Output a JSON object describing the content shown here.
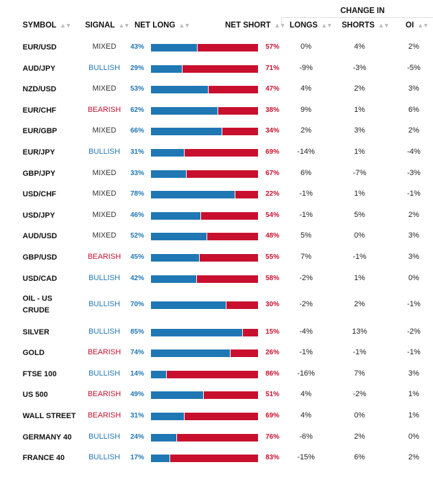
{
  "header": {
    "change_in": "CHANGE IN",
    "symbol": "SYMBOL",
    "signal": "SIGNAL",
    "net_long": "NET LONG",
    "net_short": "NET SHORT",
    "longs": "LONGS",
    "shorts": "SHORTS",
    "oi": "OI",
    "sort_icon": "sort-icon"
  },
  "colors": {
    "long": "#1f77b4",
    "short": "#c8102e"
  },
  "rows": [
    {
      "symbol": "EUR/USD",
      "signal": "MIXED",
      "net_long": "43%",
      "net_short": "57%",
      "long_fraction": 0.43,
      "longs": "0%",
      "shorts": "4%",
      "oi": "2%"
    },
    {
      "symbol": "AUD/JPY",
      "signal": "BULLISH",
      "net_long": "29%",
      "net_short": "71%",
      "long_fraction": 0.29,
      "longs": "-9%",
      "shorts": "-3%",
      "oi": "-5%"
    },
    {
      "symbol": "NZD/USD",
      "signal": "MIXED",
      "net_long": "53%",
      "net_short": "47%",
      "long_fraction": 0.53,
      "longs": "4%",
      "shorts": "2%",
      "oi": "3%"
    },
    {
      "symbol": "EUR/CHF",
      "signal": "BEARISH",
      "net_long": "62%",
      "net_short": "38%",
      "long_fraction": 0.62,
      "longs": "9%",
      "shorts": "1%",
      "oi": "6%"
    },
    {
      "symbol": "EUR/GBP",
      "signal": "MIXED",
      "net_long": "66%",
      "net_short": "34%",
      "long_fraction": 0.66,
      "longs": "2%",
      "shorts": "3%",
      "oi": "2%"
    },
    {
      "symbol": "EUR/JPY",
      "signal": "BULLISH",
      "net_long": "31%",
      "net_short": "69%",
      "long_fraction": 0.31,
      "longs": "-14%",
      "shorts": "1%",
      "oi": "-4%"
    },
    {
      "symbol": "GBP/JPY",
      "signal": "MIXED",
      "net_long": "33%",
      "net_short": "67%",
      "long_fraction": 0.33,
      "longs": "6%",
      "shorts": "-7%",
      "oi": "-3%"
    },
    {
      "symbol": "USD/CHF",
      "signal": "MIXED",
      "net_long": "78%",
      "net_short": "22%",
      "long_fraction": 0.78,
      "longs": "-1%",
      "shorts": "1%",
      "oi": "-1%"
    },
    {
      "symbol": "USD/JPY",
      "signal": "MIXED",
      "net_long": "46%",
      "net_short": "54%",
      "long_fraction": 0.46,
      "longs": "-1%",
      "shorts": "5%",
      "oi": "2%"
    },
    {
      "symbol": "AUD/USD",
      "signal": "MIXED",
      "net_long": "52%",
      "net_short": "48%",
      "long_fraction": 0.52,
      "longs": "5%",
      "shorts": "0%",
      "oi": "3%"
    },
    {
      "symbol": "GBP/USD",
      "signal": "BEARISH",
      "net_long": "45%",
      "net_short": "55%",
      "long_fraction": 0.45,
      "longs": "7%",
      "shorts": "-1%",
      "oi": "3%"
    },
    {
      "symbol": "USD/CAD",
      "signal": "BULLISH",
      "net_long": "42%",
      "net_short": "58%",
      "long_fraction": 0.42,
      "longs": "-2%",
      "shorts": "1%",
      "oi": "0%"
    },
    {
      "symbol": "OIL - US CRUDE",
      "symbol_line1": "OIL - US",
      "symbol_line2": "CRUDE",
      "signal": "BULLISH",
      "net_long": "70%",
      "net_short": "30%",
      "long_fraction": 0.7,
      "longs": "-2%",
      "shorts": "2%",
      "oi": "-1%"
    },
    {
      "symbol": "SILVER",
      "signal": "BULLISH",
      "net_long": "85%",
      "net_short": "15%",
      "long_fraction": 0.85,
      "longs": "-4%",
      "shorts": "13%",
      "oi": "-2%"
    },
    {
      "symbol": "GOLD",
      "signal": "BEARISH",
      "net_long": "74%",
      "net_short": "26%",
      "long_fraction": 0.74,
      "longs": "-1%",
      "shorts": "-1%",
      "oi": "-1%"
    },
    {
      "symbol": "FTSE 100",
      "signal": "BULLISH",
      "net_long": "14%",
      "net_short": "86%",
      "long_fraction": 0.14,
      "longs": "-16%",
      "shorts": "7%",
      "oi": "3%"
    },
    {
      "symbol": "US 500",
      "signal": "BEARISH",
      "net_long": "49%",
      "net_short": "51%",
      "long_fraction": 0.49,
      "longs": "4%",
      "shorts": "-2%",
      "oi": "1%"
    },
    {
      "symbol": "WALL STREET",
      "signal": "BEARISH",
      "net_long": "31%",
      "net_short": "69%",
      "long_fraction": 0.31,
      "longs": "4%",
      "shorts": "0%",
      "oi": "1%"
    },
    {
      "symbol": "GERMANY 40",
      "signal": "BULLISH",
      "net_long": "24%",
      "net_short": "76%",
      "long_fraction": 0.24,
      "longs": "-6%",
      "shorts": "2%",
      "oi": "0%"
    },
    {
      "symbol": "FRANCE 40",
      "signal": "BULLISH",
      "net_long": "17%",
      "net_short": "83%",
      "long_fraction": 0.17,
      "longs": "-15%",
      "shorts": "6%",
      "oi": "2%"
    }
  ]
}
